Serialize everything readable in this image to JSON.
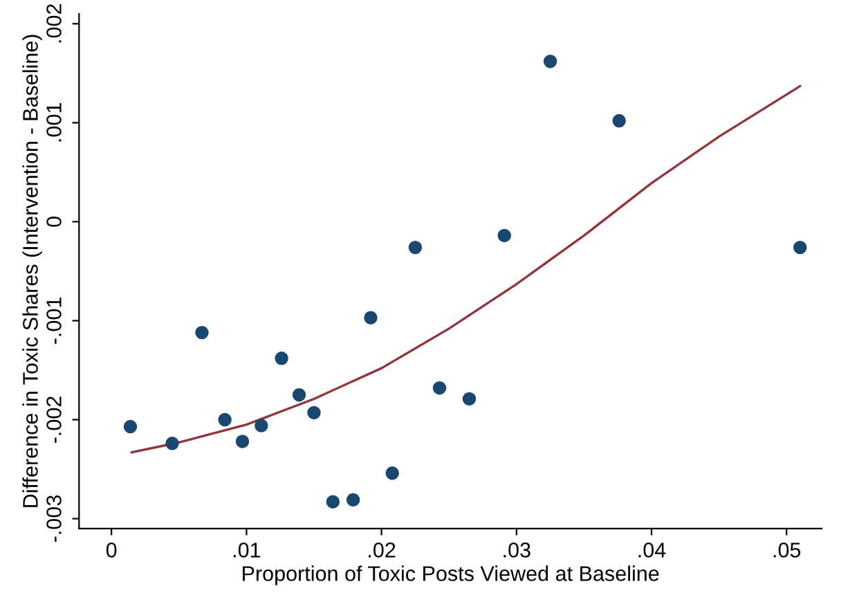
{
  "chart_data": {
    "type": "scatter",
    "xlabel": "Proportion of Toxic Posts Viewed at Baseline",
    "ylabel": "Difference in Toxic Shares (Intervention - Baseline)",
    "xlim": [
      -0.0024,
      0.0526
    ],
    "ylim": [
      -0.0031,
      0.0021
    ],
    "xticks": [
      {
        "value": 0,
        "label": "0"
      },
      {
        "value": 0.01,
        "label": ".01"
      },
      {
        "value": 0.02,
        "label": ".02"
      },
      {
        "value": 0.03,
        "label": ".03"
      },
      {
        "value": 0.04,
        "label": ".04"
      },
      {
        "value": 0.05,
        "label": ".05"
      }
    ],
    "yticks": [
      {
        "value": -0.003,
        "label": "-.003"
      },
      {
        "value": -0.002,
        "label": "-.002"
      },
      {
        "value": -0.001,
        "label": "-.001"
      },
      {
        "value": 0,
        "label": "0"
      },
      {
        "value": 0.001,
        "label": ".001"
      },
      {
        "value": 0.002,
        "label": ".002"
      }
    ],
    "grid": false,
    "legend": false,
    "series": [
      {
        "color": "#1a476f",
        "marker": "circle",
        "x": [
          0.0014,
          0.0045,
          0.0067,
          0.0084,
          0.0097,
          0.0111,
          0.0126,
          0.0139,
          0.015,
          0.0164,
          0.0179,
          0.0192,
          0.0208,
          0.0225,
          0.0243,
          0.0265,
          0.0291,
          0.0325,
          0.0376,
          0.051
        ],
        "values": [
          -0.00207,
          -0.00224,
          -0.00112,
          -0.002,
          -0.00222,
          -0.00206,
          -0.00138,
          -0.00175,
          -0.00193,
          -0.00283,
          -0.00281,
          -0.00097,
          -0.00254,
          -0.00026,
          -0.00168,
          -0.00179,
          -0.00014,
          0.00162,
          0.00102,
          -0.00026
        ]
      },
      {
        "type": "line",
        "color": "#90353b",
        "marker": "none",
        "line_style": "solid",
        "x": [
          0.0015,
          0.005,
          0.01,
          0.015,
          0.02,
          0.025,
          0.03,
          0.035,
          0.04,
          0.045,
          0.051
        ],
        "values": [
          -0.00233,
          -0.00223,
          -0.00205,
          -0.00179,
          -0.00148,
          -0.00108,
          -0.00063,
          -0.00014,
          0.00039,
          0.00086,
          0.00137
        ]
      }
    ]
  }
}
